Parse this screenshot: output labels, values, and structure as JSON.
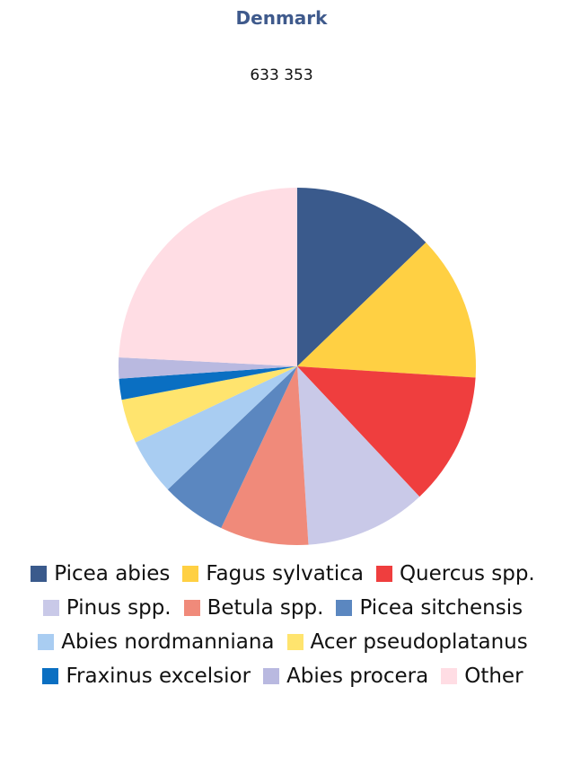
{
  "chart_data": {
    "type": "pie",
    "title": "Denmark",
    "subtitle": "633 353",
    "series": [
      {
        "name": "Picea abies",
        "color": "#3a5a8c",
        "values": [
          12.8
        ]
      },
      {
        "name": "Fagus sylvatica",
        "color": "#ffd043",
        "values": [
          13.2
        ]
      },
      {
        "name": "Quercus spp.",
        "color": "#ef3e3e",
        "values": [
          12
        ]
      },
      {
        "name": "Pinus spp.",
        "color": "#c9c9e8",
        "values": [
          11
        ]
      },
      {
        "name": "Betula spp.",
        "color": "#f08a7a",
        "values": [
          8
        ]
      },
      {
        "name": "Picea sitchensis",
        "color": "#5b87c0",
        "values": [
          5.9
        ]
      },
      {
        "name": "Abies nordmanniana",
        "color": "#a9cdf2",
        "values": [
          5.1
        ]
      },
      {
        "name": "Acer pseudoplatanus",
        "color": "#ffe46e",
        "values": [
          4
        ]
      },
      {
        "name": "Fraxinus excelsior",
        "color": "#0a6fc2",
        "values": [
          1.9
        ]
      },
      {
        "name": "Abies procera",
        "color": "#b9b9e0",
        "values": [
          1.9
        ]
      },
      {
        "name": "Other",
        "color": "#ffdde4",
        "values": [
          24.2
        ]
      }
    ]
  }
}
